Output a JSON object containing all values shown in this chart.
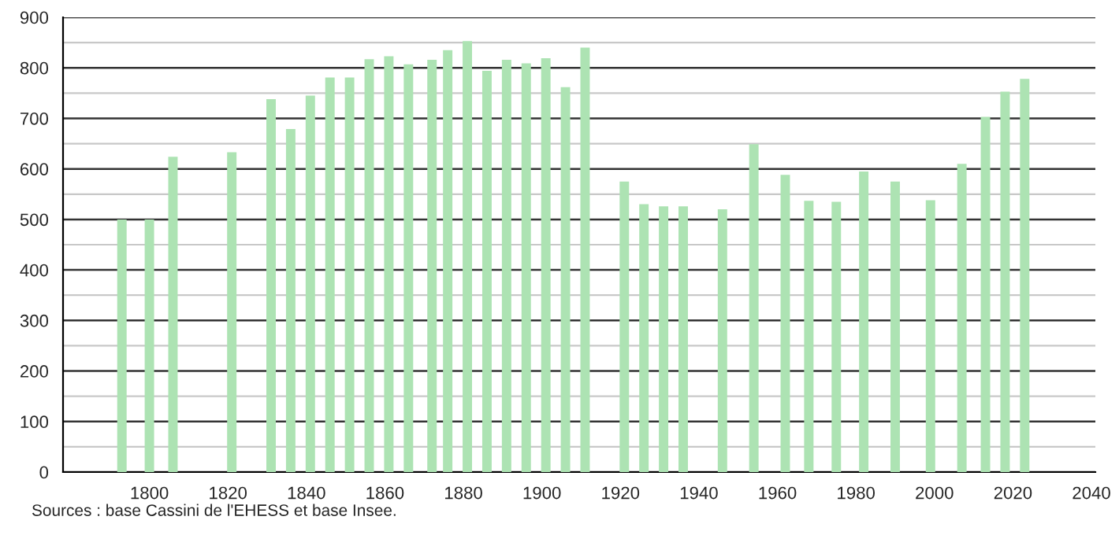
{
  "chart_data": {
    "type": "bar",
    "x": [
      1793,
      1800,
      1806,
      1821,
      1831,
      1836,
      1841,
      1846,
      1851,
      1856,
      1861,
      1866,
      1872,
      1876,
      1881,
      1886,
      1891,
      1896,
      1901,
      1906,
      1911,
      1921,
      1926,
      1931,
      1936,
      1946,
      1954,
      1962,
      1968,
      1975,
      1982,
      1990,
      1999,
      2007,
      2013,
      2018,
      2023
    ],
    "series": [
      {
        "color": "#ade3b3",
        "values": [
          500,
          500,
          624,
          633,
          738,
          679,
          745,
          781,
          781,
          817,
          823,
          807,
          816,
          835,
          853,
          794,
          816,
          809,
          819,
          762,
          840,
          575,
          530,
          526,
          526,
          520,
          649,
          588,
          537,
          535,
          595,
          575,
          538,
          610,
          703,
          753,
          778
        ]
      }
    ],
    "xlim": [
      1778,
      2041
    ],
    "xticks": [
      1800,
      1820,
      1840,
      1860,
      1880,
      1900,
      1920,
      1940,
      1960,
      1980,
      2000,
      2020,
      2040
    ],
    "ylim": [
      0,
      900
    ],
    "yticks": [
      0,
      100,
      200,
      300,
      400,
      500,
      600,
      700,
      800,
      900
    ],
    "grid": "y",
    "annotations": [
      "Sources : base Cassini de l'EHESS et base Insee."
    ]
  }
}
